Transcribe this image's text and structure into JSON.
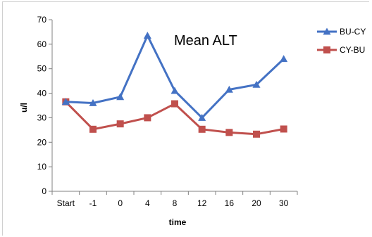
{
  "chart_data": {
    "type": "line",
    "title": "Mean ALT",
    "xlabel": "time",
    "ylabel": "u/l",
    "categories": [
      "Start",
      "-1",
      "0",
      "4",
      "8",
      "12",
      "16",
      "20",
      "30"
    ],
    "ylim": [
      0,
      70
    ],
    "yticks": [
      0,
      10,
      20,
      30,
      40,
      50,
      60,
      70
    ],
    "grid": false,
    "legend_position": "top-right",
    "series": [
      {
        "name": "BU-CY",
        "marker": "triangle",
        "color": "#4472C4",
        "values": [
          36.5,
          36,
          38.5,
          63.5,
          41,
          30,
          41.5,
          43.5,
          54
        ]
      },
      {
        "name": "CY-BU",
        "marker": "square",
        "color": "#C0504D",
        "values": [
          36.5,
          25.3,
          27.5,
          30,
          35.7,
          25.3,
          24,
          23.3,
          25.4
        ]
      }
    ]
  }
}
